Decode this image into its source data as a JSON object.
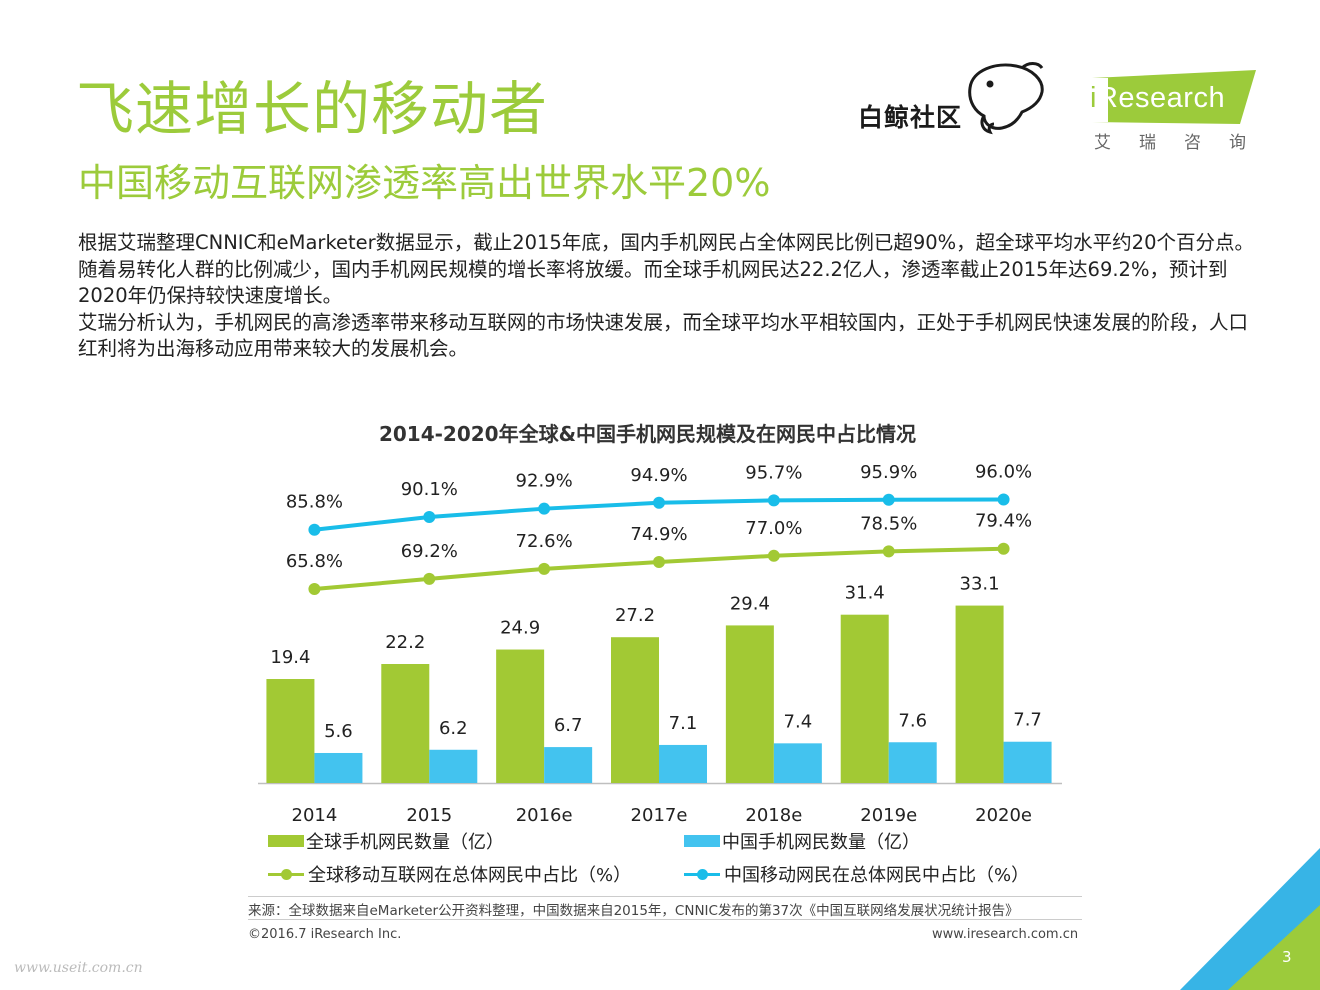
{
  "page": {
    "title": "飞速增长的移动者",
    "subtitle": "中国移动互联网渗透率高出世界水平20%",
    "paragraphs": [
      "根据艾瑞整理CNNIC和eMarketer数据显示，截止2015年底，国内手机网民占全体网民比例已超90%，超全球平均水平约20个百分点。随着易转化人群的比例减少，国内手机网民规模的增长率将放缓。而全球手机网民达22.2亿人，渗透率截止2015年达69.2%，预计到2020年仍保持较快速度增长。",
      "艾瑞分析认为，手机网民的高渗透率带来移动互联网的市场快速发展，而全球平均水平相较国内，正处于手机网民快速发展的阶段，人口红利将为出海移动应用带来较大的发展机会。"
    ],
    "source": "来源：全球数据来自eMarketer公开资料整理，中国数据来自2015年，CNNIC发布的第37次《中国互联网络发展状况统计报告》",
    "copyright": "©2016.7 iResearch Inc.",
    "website": "www.iresearch.com.cn",
    "page_number": "3",
    "watermark": "www.useit.com.cn"
  },
  "logos": {
    "baijing_text": "白鲸社区",
    "iresearch_i": "i",
    "iresearch_text": "Research",
    "iresearch_cn": "艾瑞咨询"
  },
  "colors": {
    "accent_green": "#9ccb3b",
    "bar_green": "#a2c934",
    "bar_blue": "#43c3ef",
    "line_green": "#a2c934",
    "line_blue": "#19bde9"
  },
  "chart_data": {
    "type": "bar",
    "title": "2014-2020年全球&中国手机网民规模及在网民中占比情况",
    "categories": [
      "2014",
      "2015",
      "2016e",
      "2017e",
      "2018e",
      "2019e",
      "2020e"
    ],
    "series": [
      {
        "name": "全球手机网民数量（亿）",
        "kind": "bar",
        "color": "#a2c934",
        "values": [
          19.4,
          22.2,
          24.9,
          27.2,
          29.4,
          31.4,
          33.1
        ],
        "labels": [
          "19.4",
          "22.2",
          "24.9",
          "27.2",
          "29.4",
          "31.4",
          "33.1"
        ]
      },
      {
        "name": "中国手机网民数量（亿）",
        "kind": "bar",
        "color": "#43c3ef",
        "values": [
          5.6,
          6.2,
          6.7,
          7.1,
          7.4,
          7.6,
          7.7
        ],
        "labels": [
          "5.6",
          "6.2",
          "6.7",
          "7.1",
          "7.4",
          "7.6",
          "7.7"
        ]
      },
      {
        "name": "全球移动互联网在总体网民中占比（%）",
        "kind": "line",
        "color": "#a2c934",
        "values": [
          65.8,
          69.2,
          72.6,
          74.9,
          77.0,
          78.5,
          79.4
        ],
        "labels": [
          "65.8%",
          "69.2%",
          "72.6%",
          "74.9%",
          "77.0%",
          "78.5%",
          "79.4%"
        ]
      },
      {
        "name": "中国移动网民在总体网民中占比（%）",
        "kind": "line",
        "color": "#19bde9",
        "values": [
          85.8,
          90.1,
          92.9,
          94.9,
          95.7,
          95.9,
          96.0
        ],
        "labels": [
          "85.8%",
          "90.1%",
          "92.9%",
          "94.9%",
          "95.7%",
          "95.9%",
          "96.0%"
        ]
      }
    ],
    "bar_axis": {
      "ylim": [
        0,
        35
      ]
    },
    "line_axis": {
      "ylim": [
        0,
        100
      ]
    },
    "legend_position": "bottom",
    "grid": false
  }
}
